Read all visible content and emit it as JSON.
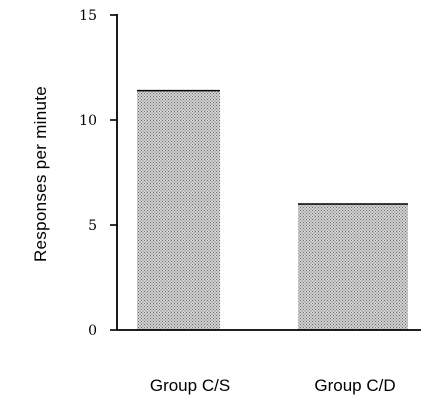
{
  "chart_data": {
    "type": "bar",
    "title": "",
    "xlabel": "",
    "ylabel": "Responses  per  minute",
    "categories": [
      "Group C/S",
      "Group C/D"
    ],
    "values": [
      11.4,
      6.0
    ],
    "ylim": [
      0,
      15
    ],
    "yticks": [
      0,
      5,
      10,
      15
    ],
    "ytick_labels": [
      "0",
      "5",
      "10",
      "15"
    ],
    "grid": false,
    "legend": "none",
    "colors": {
      "bar": "#b4b4b4",
      "axis": "#000000"
    }
  }
}
